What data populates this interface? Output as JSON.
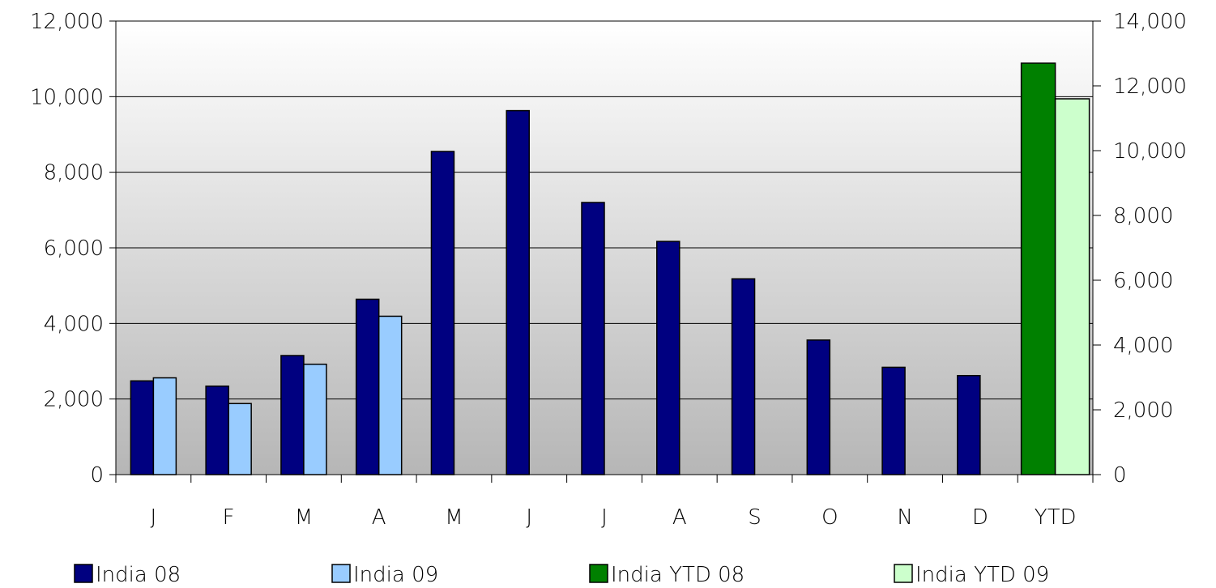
{
  "chart_data": {
    "type": "bar",
    "categories": [
      "J",
      "F",
      "M",
      "A",
      "M",
      "J",
      "J",
      "A",
      "S",
      "O",
      "N",
      "D",
      "YTD"
    ],
    "series": [
      {
        "name": "India 08",
        "axis": "left",
        "color": "#000080",
        "values": [
          2480,
          2340,
          3150,
          4640,
          8550,
          9630,
          7200,
          6170,
          5180,
          3560,
          2840,
          2620,
          null
        ]
      },
      {
        "name": "India 09",
        "axis": "left",
        "color": "#99CCFF",
        "values": [
          2560,
          1880,
          2920,
          4190,
          null,
          null,
          null,
          null,
          null,
          null,
          null,
          null,
          null
        ]
      },
      {
        "name": "India YTD 08",
        "axis": "right",
        "color": "#008000",
        "values": [
          null,
          null,
          null,
          null,
          null,
          null,
          null,
          null,
          null,
          null,
          null,
          null,
          12700
        ]
      },
      {
        "name": "India YTD 09",
        "axis": "right",
        "color": "#CCFFCC",
        "values": [
          null,
          null,
          null,
          null,
          null,
          null,
          null,
          null,
          null,
          null,
          null,
          null,
          11600
        ]
      }
    ],
    "y_left": {
      "min": 0,
      "max": 12000,
      "ticks": [
        0,
        2000,
        4000,
        6000,
        8000,
        10000,
        12000
      ],
      "tick_labels": [
        "0",
        "2,000",
        "4,000",
        "6,000",
        "8,000",
        "10,000",
        "12,000"
      ]
    },
    "y_right": {
      "min": 0,
      "max": 14000,
      "ticks": [
        0,
        2000,
        4000,
        6000,
        8000,
        10000,
        12000,
        14000
      ],
      "tick_labels": [
        "0",
        "2,000",
        "4,000",
        "6,000",
        "8,000",
        "10,000",
        "12,000",
        "14,000"
      ]
    },
    "title": "",
    "xlabel": "",
    "ylabel": "",
    "grid": true,
    "legend_position": "bottom",
    "background": "vertical gradient white to gray"
  }
}
